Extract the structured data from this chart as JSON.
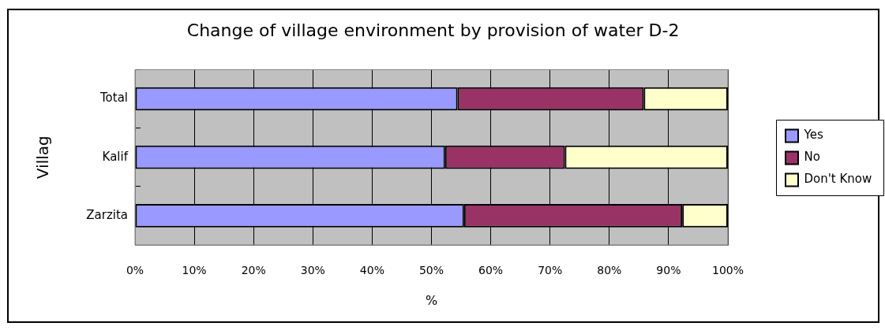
{
  "chart_data": {
    "type": "bar",
    "orientation": "horizontal",
    "stacked": true,
    "title": "Change of village environment by provision of water D-2",
    "xlabel": "%",
    "ylabel": "Villag",
    "categories": [
      "Total",
      "Kalif",
      "Zarzita"
    ],
    "series": [
      {
        "name": "Yes",
        "color": "#9999ff",
        "values": [
          54.4,
          52.3,
          55.5
        ]
      },
      {
        "name": "No",
        "color": "#993366",
        "values": [
          31.4,
          20.2,
          36.8
        ]
      },
      {
        "name": "Don't Know",
        "color": "#ffffcc",
        "values": [
          14.2,
          27.5,
          7.7
        ]
      }
    ],
    "xlim": [
      0,
      100
    ],
    "xticks": [
      {
        "value": 0,
        "label": "0%"
      },
      {
        "value": 10,
        "label": "10%"
      },
      {
        "value": 20,
        "label": "20%"
      },
      {
        "value": 30,
        "label": "30%"
      },
      {
        "value": 40,
        "label": "40%"
      },
      {
        "value": 50,
        "label": "50%"
      },
      {
        "value": 60,
        "label": "60%"
      },
      {
        "value": 70,
        "label": "70%"
      },
      {
        "value": 80,
        "label": "80%"
      },
      {
        "value": 90,
        "label": "90%"
      },
      {
        "value": 100,
        "label": "100%"
      }
    ],
    "grid": "x",
    "legend": "right"
  }
}
